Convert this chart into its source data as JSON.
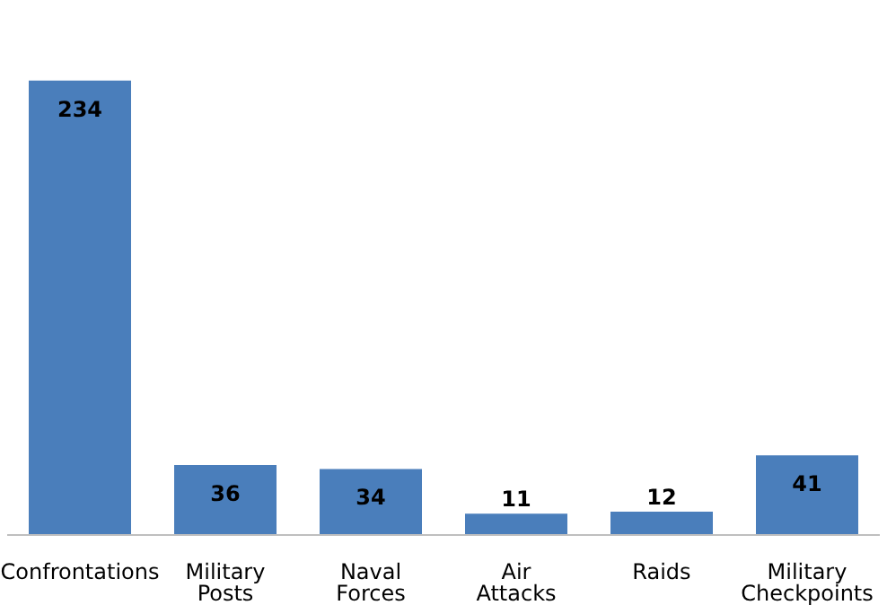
{
  "chart_data": {
    "type": "bar",
    "categories": [
      "Confrontations",
      "Military Posts",
      "Naval Forces",
      "Air Attacks",
      "Raids",
      "Military Checkpoints"
    ],
    "values": [
      234,
      36,
      34,
      11,
      12,
      41
    ],
    "color": "#4a7ebb",
    "data_labels": true,
    "grid": false,
    "legend": false
  }
}
